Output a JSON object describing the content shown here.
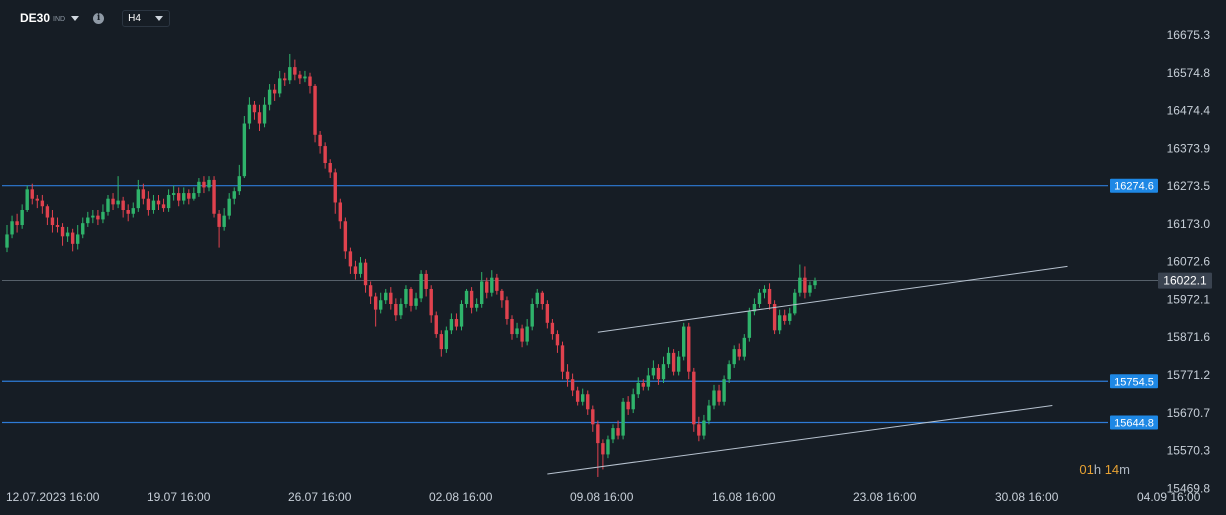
{
  "header": {
    "symbol": "DE30",
    "symbol_type": "IND",
    "timeframe": "H4",
    "info_icon": "info-icon",
    "dropdown_icon": "chevron-down-icon"
  },
  "countdown": {
    "hours": "01",
    "hour_unit": "h",
    "minutes": "14",
    "minute_unit": "m"
  },
  "colors": {
    "background": "#161d25",
    "grid": "#232c36",
    "up_candle": "#2fb36b",
    "down_candle": "#e0424e",
    "level_line": "#2e7bd6",
    "level_badge": "#1e88e5",
    "current_price_badge": "#3a4350",
    "trendline": "#b7c2cf",
    "countdown": "#e7a233"
  },
  "chart_data": {
    "type": "candlestick",
    "y_ticks": [
      "16675.3",
      "16574.8",
      "16474.4",
      "16373.9",
      "16273.5",
      "16173.0",
      "16072.6",
      "15972.1",
      "15871.6",
      "15771.2",
      "15670.7",
      "15570.3",
      "15469.8"
    ],
    "x_ticks": [
      "12.07.2023 16:00",
      "19.07 16:00",
      "26.07 16:00",
      "02.08 16:00",
      "09.08 16:00",
      "16.08 16:00",
      "23.08 16:00",
      "30.08 16:00",
      "04.09 16:00"
    ],
    "ylim": [
      15460,
      16710
    ],
    "horizontal_levels": [
      {
        "label": "16274.6",
        "value": 16274.6
      },
      {
        "label": "15754.5",
        "value": 15754.5
      },
      {
        "label": "15644.8",
        "value": 15644.8
      }
    ],
    "current_price": {
      "label": "16022.1",
      "value": 16022.1
    },
    "trendlines": [
      {
        "from": {
          "t": 117,
          "v": 15885
        },
        "to": {
          "t": 210,
          "v": 16060
        }
      },
      {
        "from": {
          "t": 107,
          "v": 15508
        },
        "to": {
          "t": 207,
          "v": 15690
        }
      }
    ],
    "grid": false,
    "candles": [
      [
        16110,
        16145,
        16098,
        16170
      ],
      [
        16145,
        16180,
        16135,
        16195
      ],
      [
        16180,
        16170,
        16150,
        16200
      ],
      [
        16170,
        16210,
        16160,
        16225
      ],
      [
        16210,
        16265,
        16205,
        16275
      ],
      [
        16265,
        16240,
        16225,
        16280
      ],
      [
        16240,
        16235,
        16215,
        16250
      ],
      [
        16235,
        16220,
        16200,
        16250
      ],
      [
        16220,
        16190,
        16170,
        16225
      ],
      [
        16190,
        16170,
        16150,
        16210
      ],
      [
        16170,
        16165,
        16150,
        16190
      ],
      [
        16165,
        16140,
        16115,
        16175
      ],
      [
        16140,
        16150,
        16125,
        16165
      ],
      [
        16150,
        16120,
        16100,
        16160
      ],
      [
        16120,
        16145,
        16105,
        16170
      ],
      [
        16145,
        16175,
        16135,
        16190
      ],
      [
        16175,
        16190,
        16165,
        16205
      ],
      [
        16190,
        16195,
        16175,
        16210
      ],
      [
        16195,
        16185,
        16170,
        16210
      ],
      [
        16185,
        16205,
        16175,
        16225
      ],
      [
        16205,
        16240,
        16195,
        16250
      ],
      [
        16240,
        16225,
        16210,
        16255
      ],
      [
        16225,
        16235,
        16215,
        16300
      ],
      [
        16235,
        16210,
        16190,
        16245
      ],
      [
        16210,
        16200,
        16180,
        16225
      ],
      [
        16200,
        16215,
        16190,
        16230
      ],
      [
        16215,
        16265,
        16205,
        16290
      ],
      [
        16265,
        16240,
        16225,
        16280
      ],
      [
        16240,
        16210,
        16195,
        16260
      ],
      [
        16210,
        16235,
        16200,
        16250
      ],
      [
        16235,
        16225,
        16210,
        16250
      ],
      [
        16225,
        16215,
        16205,
        16240
      ],
      [
        16215,
        16250,
        16205,
        16265
      ],
      [
        16250,
        16255,
        16235,
        16275
      ],
      [
        16255,
        16235,
        16220,
        16270
      ],
      [
        16235,
        16255,
        16225,
        16270
      ],
      [
        16255,
        16240,
        16225,
        16265
      ],
      [
        16240,
        16255,
        16235,
        16270
      ],
      [
        16255,
        16285,
        16245,
        16295
      ],
      [
        16285,
        16270,
        16255,
        16300
      ],
      [
        16270,
        16290,
        16260,
        16300
      ],
      [
        16290,
        16200,
        16190,
        16300
      ],
      [
        16200,
        16165,
        16110,
        16210
      ],
      [
        16165,
        16195,
        16155,
        16215
      ],
      [
        16195,
        16240,
        16185,
        16255
      ],
      [
        16240,
        16260,
        16225,
        16270
      ],
      [
        16260,
        16300,
        16250,
        16330
      ],
      [
        16300,
        16440,
        16295,
        16460
      ],
      [
        16440,
        16490,
        16425,
        16510
      ],
      [
        16490,
        16470,
        16450,
        16500
      ],
      [
        16470,
        16440,
        16420,
        16490
      ],
      [
        16440,
        16490,
        16430,
        16510
      ],
      [
        16490,
        16530,
        16475,
        16545
      ],
      [
        16530,
        16520,
        16500,
        16545
      ],
      [
        16520,
        16560,
        16510,
        16580
      ],
      [
        16560,
        16555,
        16540,
        16575
      ],
      [
        16555,
        16590,
        16545,
        16625
      ],
      [
        16590,
        16570,
        16555,
        16610
      ],
      [
        16570,
        16560,
        16545,
        16580
      ],
      [
        16560,
        16565,
        16550,
        16580
      ],
      [
        16565,
        16540,
        16520,
        16575
      ],
      [
        16540,
        16410,
        16390,
        16545
      ],
      [
        16410,
        16380,
        16360,
        16420
      ],
      [
        16380,
        16335,
        16320,
        16390
      ],
      [
        16335,
        16310,
        16295,
        16345
      ],
      [
        16310,
        16230,
        16200,
        16320
      ],
      [
        16230,
        16180,
        16160,
        16240
      ],
      [
        16180,
        16100,
        16080,
        16190
      ],
      [
        16100,
        16060,
        16040,
        16110
      ],
      [
        16060,
        16040,
        16025,
        16075
      ],
      [
        16040,
        16070,
        16030,
        16085
      ],
      [
        16070,
        16010,
        15990,
        16080
      ],
      [
        16010,
        15980,
        15960,
        16020
      ],
      [
        15980,
        15945,
        15900,
        15990
      ],
      [
        15945,
        15970,
        15935,
        15990
      ],
      [
        15970,
        15990,
        15960,
        16000
      ],
      [
        15990,
        15960,
        15945,
        16005
      ],
      [
        15960,
        15930,
        15915,
        15975
      ],
      [
        15930,
        15960,
        15920,
        15975
      ],
      [
        15960,
        16000,
        15950,
        16010
      ],
      [
        16000,
        15955,
        15940,
        16005
      ],
      [
        15955,
        15975,
        15945,
        15990
      ],
      [
        15975,
        16040,
        15965,
        16050
      ],
      [
        16040,
        16000,
        15980,
        16050
      ],
      [
        16000,
        15930,
        15910,
        16010
      ],
      [
        15930,
        15880,
        15870,
        15940
      ],
      [
        15880,
        15840,
        15820,
        15890
      ],
      [
        15840,
        15890,
        15830,
        15900
      ],
      [
        15890,
        15920,
        15880,
        15935
      ],
      [
        15920,
        15900,
        15890,
        15935
      ],
      [
        15900,
        15960,
        15890,
        15970
      ],
      [
        15960,
        15995,
        15950,
        16000
      ],
      [
        15995,
        15950,
        15935,
        16005
      ],
      [
        15950,
        15960,
        15940,
        15975
      ],
      [
        15960,
        16020,
        15950,
        16045
      ],
      [
        16020,
        15990,
        15975,
        16030
      ],
      [
        15990,
        16030,
        15980,
        16050
      ],
      [
        16030,
        15995,
        15985,
        16040
      ],
      [
        15995,
        15970,
        15950,
        16000
      ],
      [
        15970,
        15920,
        15905,
        15980
      ],
      [
        15920,
        15880,
        15865,
        15930
      ],
      [
        15880,
        15895,
        15870,
        15910
      ],
      [
        15895,
        15860,
        15845,
        15905
      ],
      [
        15860,
        15900,
        15850,
        15920
      ],
      [
        15900,
        15960,
        15890,
        15975
      ],
      [
        15960,
        15990,
        15950,
        16000
      ],
      [
        15990,
        15960,
        15945,
        15995
      ],
      [
        15960,
        15910,
        15895,
        15970
      ],
      [
        15910,
        15880,
        15865,
        15920
      ],
      [
        15880,
        15850,
        15830,
        15890
      ],
      [
        15850,
        15780,
        15760,
        15860
      ],
      [
        15780,
        15760,
        15740,
        15800
      ],
      [
        15760,
        15730,
        15715,
        15775
      ],
      [
        15730,
        15700,
        15690,
        15740
      ],
      [
        15700,
        15720,
        15690,
        15735
      ],
      [
        15720,
        15680,
        15665,
        15730
      ],
      [
        15680,
        15640,
        15620,
        15690
      ],
      [
        15640,
        15590,
        15500,
        15650
      ],
      [
        15590,
        15560,
        15520,
        15600
      ],
      [
        15560,
        15600,
        15550,
        15610
      ],
      [
        15600,
        15630,
        15590,
        15640
      ],
      [
        15630,
        15610,
        15600,
        15650
      ],
      [
        15610,
        15700,
        15600,
        15710
      ],
      [
        15700,
        15680,
        15665,
        15715
      ],
      [
        15680,
        15720,
        15670,
        15735
      ],
      [
        15720,
        15750,
        15710,
        15765
      ],
      [
        15750,
        15740,
        15730,
        15760
      ],
      [
        15740,
        15770,
        15730,
        15790
      ],
      [
        15770,
        15790,
        15760,
        15810
      ],
      [
        15790,
        15760,
        15745,
        15800
      ],
      [
        15760,
        15800,
        15750,
        15820
      ],
      [
        15800,
        15830,
        15790,
        15845
      ],
      [
        15830,
        15780,
        15770,
        15840
      ],
      [
        15780,
        15820,
        15770,
        15835
      ],
      [
        15820,
        15900,
        15810,
        15910
      ],
      [
        15900,
        15780,
        15760,
        15910
      ],
      [
        15780,
        15640,
        15620,
        15790
      ],
      [
        15640,
        15610,
        15595,
        15660
      ],
      [
        15610,
        15650,
        15600,
        15665
      ],
      [
        15650,
        15690,
        15640,
        15705
      ],
      [
        15690,
        15730,
        15680,
        15745
      ],
      [
        15730,
        15700,
        15690,
        15745
      ],
      [
        15700,
        15760,
        15690,
        15770
      ],
      [
        15760,
        15800,
        15750,
        15810
      ],
      [
        15800,
        15840,
        15790,
        15850
      ],
      [
        15840,
        15820,
        15810,
        15855
      ],
      [
        15820,
        15870,
        15810,
        15880
      ],
      [
        15870,
        15940,
        15860,
        15950
      ],
      [
        15940,
        15960,
        15930,
        15975
      ],
      [
        15960,
        15990,
        15950,
        16000
      ],
      [
        15990,
        16000,
        15975,
        16010
      ],
      [
        16000,
        15960,
        15945,
        16015
      ],
      [
        15960,
        15890,
        15880,
        15970
      ],
      [
        15890,
        15930,
        15880,
        15945
      ],
      [
        15930,
        15915,
        15905,
        15945
      ],
      [
        15915,
        15935,
        15905,
        15950
      ],
      [
        15935,
        15990,
        15930,
        16000
      ],
      [
        15990,
        16030,
        15980,
        16065
      ],
      [
        16030,
        15990,
        15975,
        16060
      ],
      [
        15990,
        16010,
        15980,
        16020
      ],
      [
        16010,
        16022.1,
        16000,
        16030
      ]
    ]
  }
}
